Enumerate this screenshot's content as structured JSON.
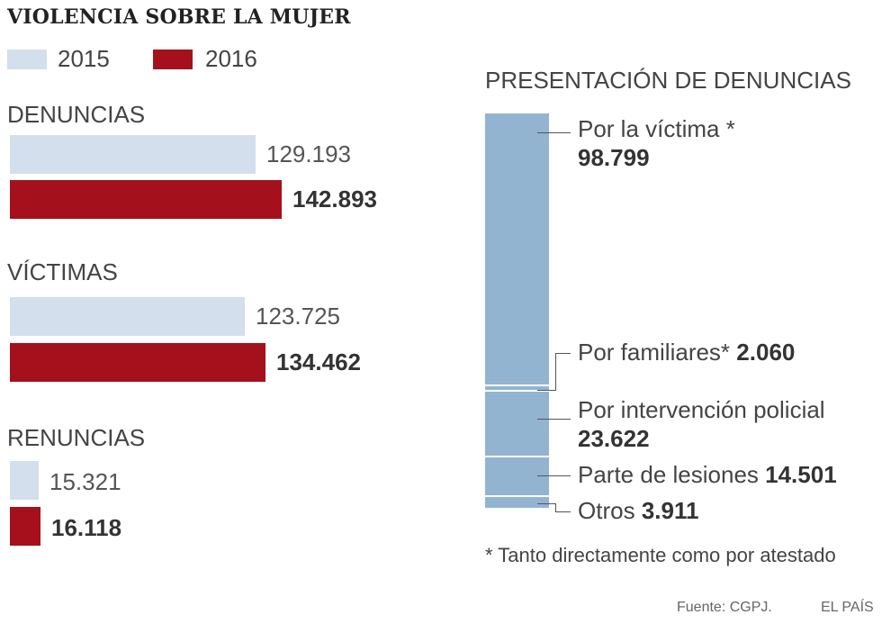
{
  "title": "VIOLENCIA SOBRE LA MUJER",
  "colors": {
    "y2015": "#d3dfec",
    "y2016": "#a4111c",
    "segment": "#93b4d1"
  },
  "legend": [
    {
      "label": "2015",
      "color": "#d3dfec"
    },
    {
      "label": "2016",
      "color": "#a4111c"
    }
  ],
  "chart_data": [
    {
      "type": "bar",
      "orientation": "horizontal",
      "categories": [
        "DENUNCIAS",
        "VÍCTIMAS",
        "RENUNCIAS"
      ],
      "series": [
        {
          "name": "2015",
          "values": [
            129193,
            123725,
            15321
          ],
          "labels": [
            "129.193",
            "123.725",
            "15.321"
          ]
        },
        {
          "name": "2016",
          "values": [
            142893,
            134462,
            16118
          ],
          "labels": [
            "142.893",
            "134.462",
            "16.118"
          ]
        }
      ]
    },
    {
      "type": "bar",
      "stacked": true,
      "title": "PRESENTACIÓN DE DENUNCIAS",
      "segments": [
        {
          "label": "Por la víctima *",
          "value": 98799,
          "value_label": "98.799"
        },
        {
          "label": "Por familiares*",
          "value": 2060,
          "value_label": "2.060"
        },
        {
          "label": "Por intervención policial",
          "value": 23622,
          "value_label": "23.622"
        },
        {
          "label": "Parte de lesiones",
          "value": 14501,
          "value_label": "14.501"
        },
        {
          "label": "Otros",
          "value": 3911,
          "value_label": "3.911"
        }
      ]
    }
  ],
  "footnote": "* Tanto directamente como por atestado",
  "source": "Fuente: CGPJ.",
  "publisher": "EL PAÍS"
}
